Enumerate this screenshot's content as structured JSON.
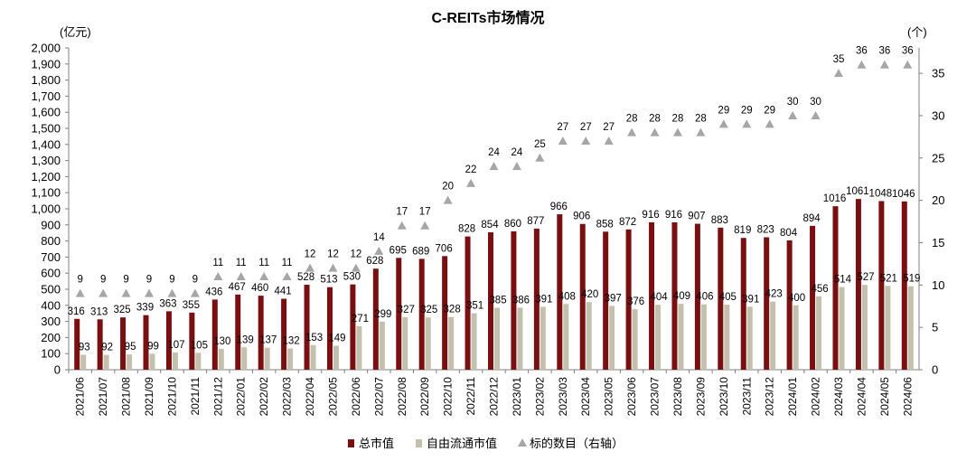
{
  "chart_data": {
    "type": "bar",
    "title": "C-REITs市场情况",
    "left_axis_unit": "(亿元)",
    "right_axis_unit": "(个)",
    "ylim_left": [
      0,
      2000
    ],
    "ytick_step_left": 100,
    "ylim_right": [
      0,
      38
    ],
    "yticks_right": [
      0,
      5,
      10,
      15,
      20,
      25,
      30,
      35
    ],
    "grid": false,
    "legend_position": "bottom",
    "categories": [
      "2021/06",
      "2021/07",
      "2021/08",
      "2021/09",
      "2021/10",
      "2021/11",
      "2021/12",
      "2022/01",
      "2022/02",
      "2022/03",
      "2022/04",
      "2022/05",
      "2022/06",
      "2022/07",
      "2022/08",
      "2022/09",
      "2022/10",
      "2022/11",
      "2022/12",
      "2023/01",
      "2023/02",
      "2023/03",
      "2023/04",
      "2023/05",
      "2023/06",
      "2023/07",
      "2023/08",
      "2023/09",
      "2023/10",
      "2023/11",
      "2023/12",
      "2024/01",
      "2024/02",
      "2024/03",
      "2024/04",
      "2024/05",
      "2024/06"
    ],
    "series": [
      {
        "name": "总市值",
        "kind": "bar",
        "axis": "left",
        "color": "#7a0f12",
        "values": [
          316,
          313,
          325,
          339,
          363,
          355,
          436,
          467,
          460,
          441,
          528,
          513,
          530,
          628,
          695,
          689,
          706,
          828,
          854,
          860,
          877,
          966,
          906,
          858,
          872,
          916,
          916,
          907,
          883,
          819,
          823,
          804,
          894,
          1016,
          1061,
          1048,
          1046
        ]
      },
      {
        "name": "自由流通市值",
        "kind": "bar",
        "axis": "left",
        "color": "#c3c1ad",
        "values": [
          93,
          92,
          95,
          99,
          107,
          105,
          130,
          139,
          137,
          132,
          153,
          149,
          271,
          299,
          327,
          325,
          328,
          351,
          385,
          386,
          391,
          408,
          420,
          397,
          376,
          404,
          409,
          406,
          405,
          391,
          423,
          400,
          456,
          514,
          527,
          521,
          519
        ]
      },
      {
        "name": "标的数目（右轴）",
        "kind": "marker",
        "axis": "right",
        "color": "#a6a6a6",
        "values": [
          9,
          9,
          9,
          9,
          9,
          9,
          11,
          11,
          11,
          11,
          12,
          12,
          12,
          14,
          17,
          17,
          20,
          22,
          24,
          24,
          25,
          27,
          27,
          27,
          28,
          28,
          28,
          28,
          29,
          29,
          29,
          30,
          30,
          35,
          36,
          36,
          36
        ]
      }
    ]
  }
}
